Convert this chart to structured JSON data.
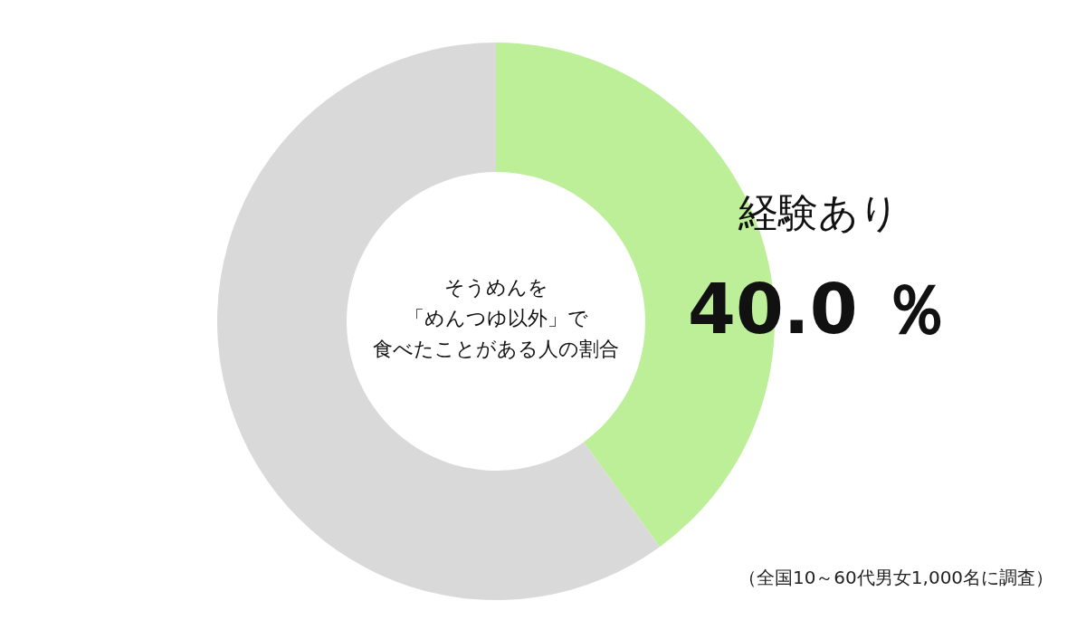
{
  "chart_data": {
    "type": "donut",
    "title": "そうめんを「めんつゆ以外」で食べたことがある人の割合",
    "categories": [
      "経験あり",
      null
    ],
    "values": [
      40,
      60
    ],
    "colors": [
      "#bdee98",
      "#d9d9d9"
    ],
    "value_labels": [
      "40.0 ％",
      null
    ],
    "annotations": [
      "（全国10～60代男女1,000名に調査）"
    ]
  }
}
